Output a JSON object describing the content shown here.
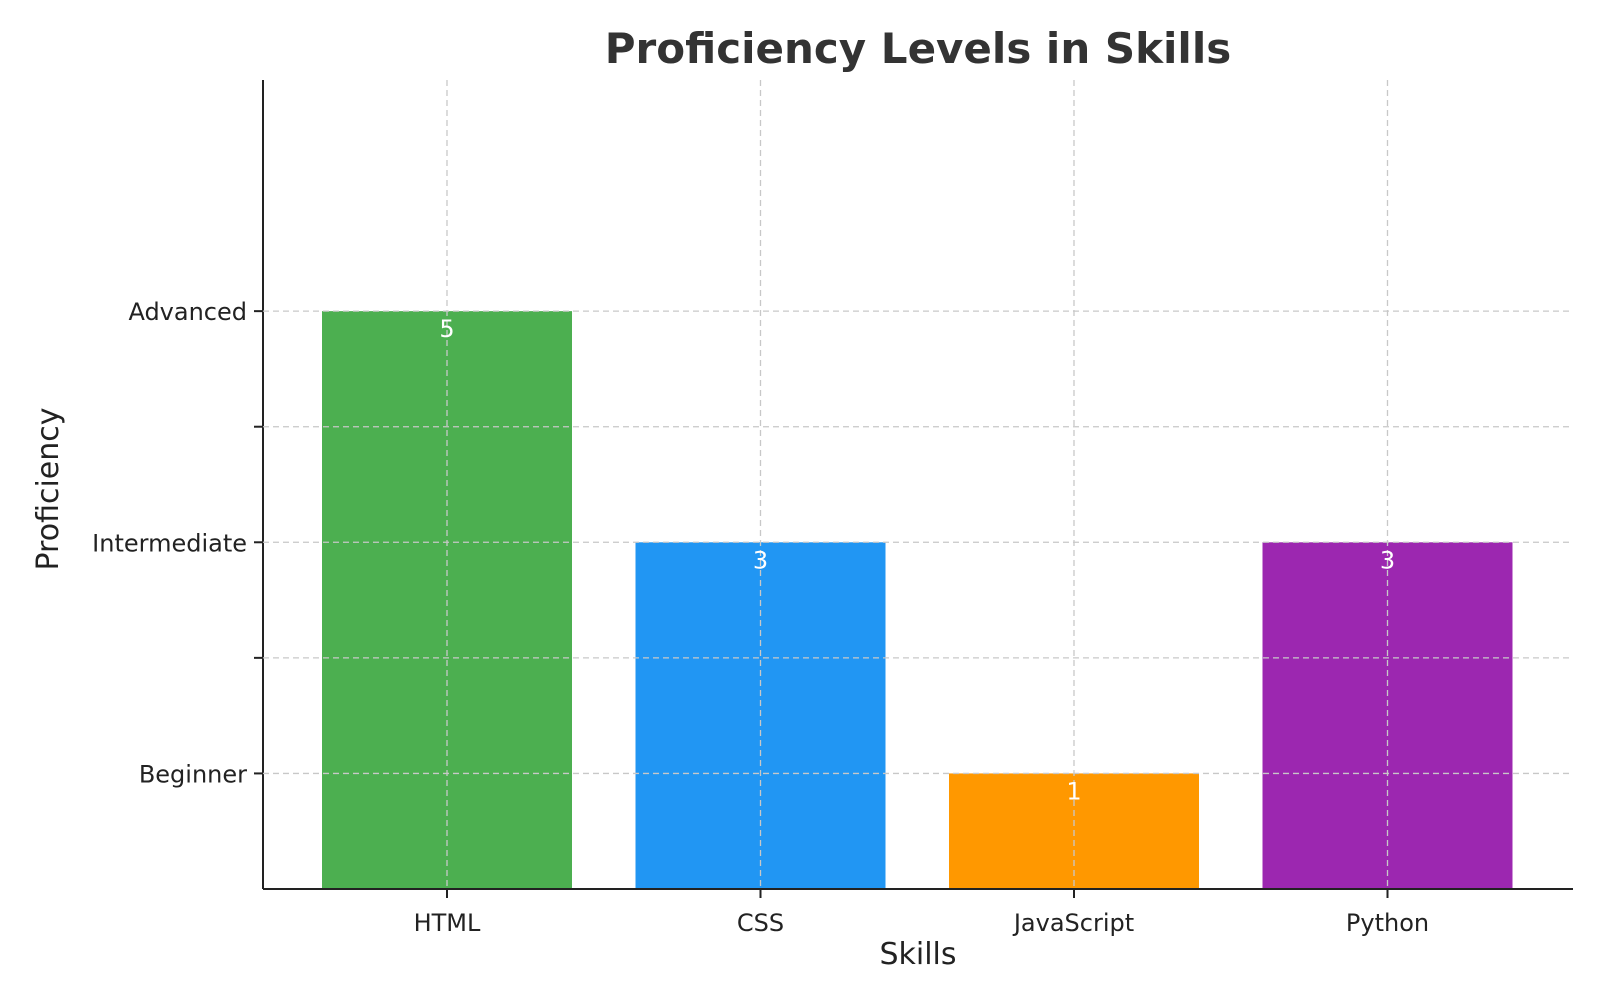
{
  "chart_data": {
    "type": "bar",
    "title": "Proficiency Levels in Skills",
    "xlabel": "Skills",
    "ylabel": "Proficiency",
    "categories": [
      "HTML",
      "CSS",
      "JavaScript",
      "Python"
    ],
    "values": [
      5,
      3,
      1,
      3
    ],
    "colors": [
      "#4caf50",
      "#2196f3",
      "#ff9800",
      "#9c27b0"
    ],
    "ylim": [
      0,
      7
    ],
    "yticks": [
      1,
      2,
      3,
      4,
      5
    ],
    "ytick_labels": {
      "1": "Beginner",
      "3": "Intermediate",
      "5": "Advanced"
    },
    "grid": true,
    "data_label_color": "#ffffff"
  }
}
